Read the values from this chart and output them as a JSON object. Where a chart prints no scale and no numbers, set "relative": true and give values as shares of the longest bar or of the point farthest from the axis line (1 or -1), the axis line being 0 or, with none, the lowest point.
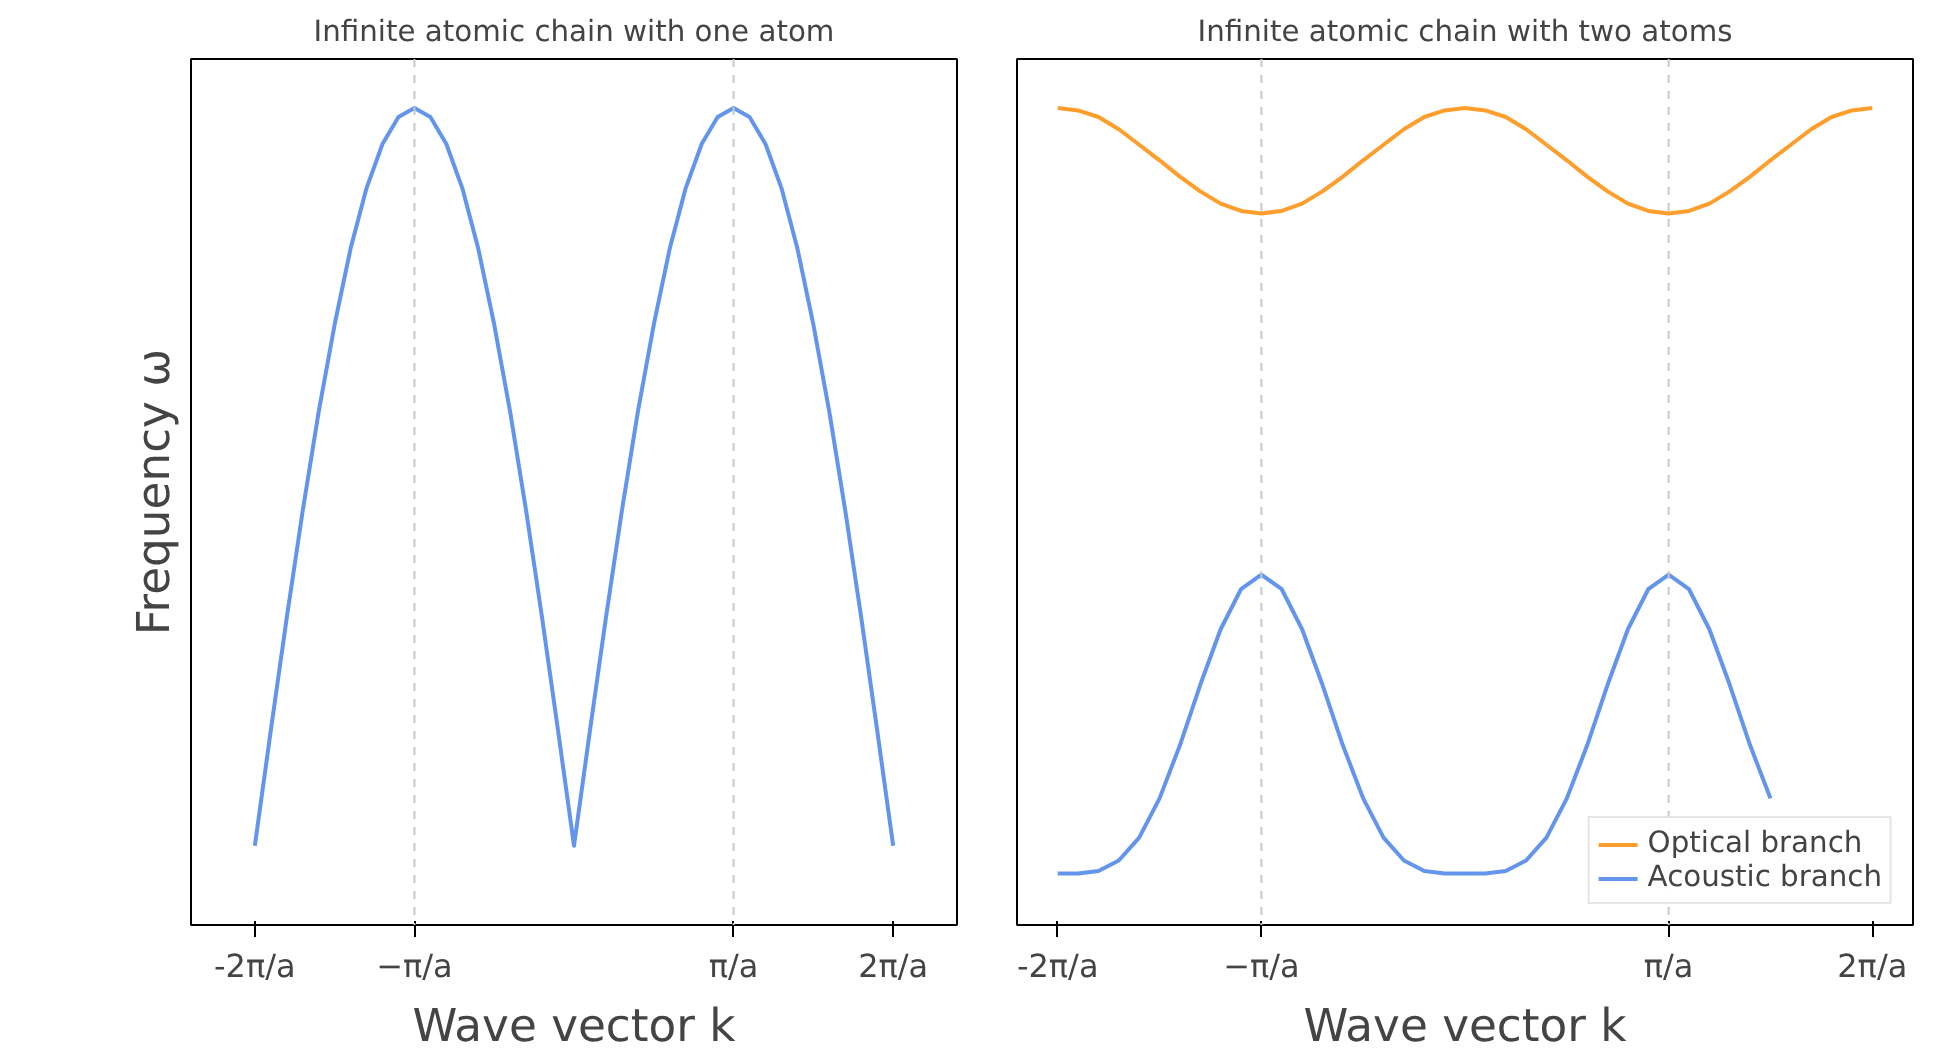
{
  "chart_data": [
    {
      "type": "line",
      "title": "Infinite atomic chain with one atom",
      "xlabel": "Wave vector k",
      "ylabel": "Frequency ω",
      "relative": true,
      "grid": false,
      "tick_labels": "x",
      "legend": false,
      "xlim": [
        -2.4,
        2.4
      ],
      "xticks": [
        {
          "value": -2,
          "label": "-2π/a"
        },
        {
          "value": -1,
          "label": "−π/a"
        },
        {
          "value": 1,
          "label": "π/a"
        },
        {
          "value": 2,
          "label": "2π/a"
        }
      ],
      "x": [
        -2.0,
        -1.9,
        -1.8,
        -1.7,
        -1.6,
        -1.5,
        -1.4,
        -1.3,
        -1.2,
        -1.1,
        -1.0,
        -0.9,
        -0.8,
        -0.7,
        -0.6,
        -0.5,
        -0.4,
        -0.3,
        -0.2,
        -0.1,
        0.0,
        0.1,
        0.2,
        0.3,
        0.4,
        0.5,
        0.6,
        0.7,
        0.8,
        0.9,
        1.0,
        1.1,
        1.2,
        1.3,
        1.4,
        1.5,
        1.6,
        1.7,
        1.8,
        1.9,
        2.0
      ],
      "series": [
        {
          "color": "#6495ed",
          "values": [
            0.097,
            0.238,
            0.376,
            0.507,
            0.628,
            0.735,
            0.828,
            0.902,
            0.956,
            0.989,
            1.0,
            0.989,
            0.956,
            0.902,
            0.828,
            0.735,
            0.628,
            0.507,
            0.376,
            0.238,
            0.097,
            0.238,
            0.376,
            0.507,
            0.628,
            0.735,
            0.828,
            0.902,
            0.956,
            0.989,
            1.0,
            0.989,
            0.956,
            0.902,
            0.828,
            0.735,
            0.628,
            0.507,
            0.376,
            0.238,
            0.097
          ]
        }
      ],
      "ref_lines": [
        {
          "axis": "x",
          "value": -1,
          "color": "#c8c8c8",
          "line_style": "dashed"
        },
        {
          "axis": "x",
          "value": 1,
          "color": "#c8c8c8",
          "line_style": "dashed"
        }
      ]
    },
    {
      "type": "line",
      "title": "Infinite atomic chain with two atoms",
      "xlabel": "Wave vector k",
      "relative": true,
      "grid": false,
      "tick_labels": "x",
      "legend": "bottom right",
      "xlim": [
        -2.2,
        2.2
      ],
      "xticks": [
        {
          "value": -2,
          "label": "-2π/a"
        },
        {
          "value": -1,
          "label": "−π/a"
        },
        {
          "value": 1,
          "label": "π/a"
        },
        {
          "value": 2,
          "label": "2π/a"
        }
      ],
      "x": [
        -2.0,
        -1.9,
        -1.8,
        -1.7,
        -1.6,
        -1.5,
        -1.4,
        -1.3,
        -1.2,
        -1.1,
        -1.0,
        -0.9,
        -0.8,
        -0.7,
        -0.6,
        -0.5,
        -0.4,
        -0.3,
        -0.2,
        -0.1,
        0.0,
        0.1,
        0.2,
        0.3,
        0.4,
        0.5,
        0.6,
        0.7,
        0.8,
        0.9,
        1.0,
        1.1,
        1.2,
        1.3,
        1.4,
        1.5,
        1.6,
        1.7,
        1.8,
        1.9,
        2.0
      ],
      "series": [
        {
          "name": "Optical branch",
          "color": "#ff9e2c",
          "values": [
            1.0,
            0.997,
            0.989,
            0.974,
            0.955,
            0.936,
            0.916,
            0.898,
            0.883,
            0.874,
            0.871,
            0.874,
            0.883,
            0.898,
            0.916,
            0.936,
            0.955,
            0.974,
            0.989,
            0.997,
            1.0,
            0.997,
            0.989,
            0.974,
            0.955,
            0.936,
            0.916,
            0.898,
            0.883,
            0.874,
            0.871,
            0.874,
            0.883,
            0.898,
            0.916,
            0.936,
            0.955,
            0.974,
            0.989,
            0.997,
            1.0
          ]
        },
        {
          "name": "Acoustic branch",
          "color": "#6495ed",
          "values": [
            0.063,
            0.063,
            0.066,
            0.079,
            0.107,
            0.155,
            0.22,
            0.294,
            0.362,
            0.411,
            0.429,
            0.411,
            0.362,
            0.294,
            0.22,
            0.155,
            0.107,
            0.079,
            0.066,
            0.063,
            0.063,
            0.063,
            0.066,
            0.079,
            0.107,
            0.155,
            0.22,
            0.294,
            0.362,
            0.411,
            0.429,
            0.411,
            0.362,
            0.294,
            0.22,
            0.155,
            null,
            null,
            null,
            null,
            null
          ]
        }
      ],
      "ref_lines": [
        {
          "axis": "x",
          "value": -1,
          "color": "#c8c8c8",
          "line_style": "dashed"
        },
        {
          "axis": "x",
          "value": 1,
          "color": "#c8c8c8",
          "line_style": "dashed"
        }
      ]
    }
  ]
}
